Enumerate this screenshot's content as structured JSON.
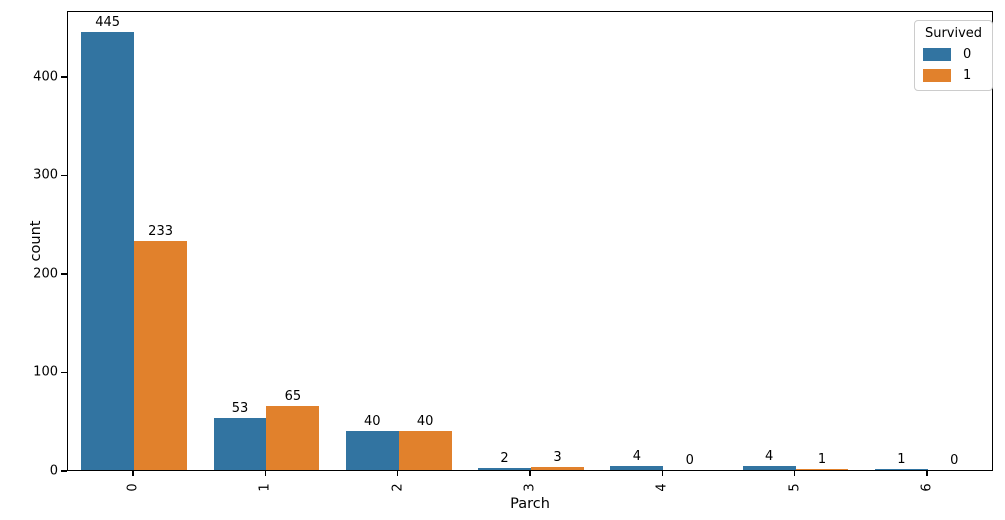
{
  "chart_data": {
    "type": "bar",
    "title": "",
    "xlabel": "Parch",
    "ylabel": "count",
    "categories": [
      "0",
      "1",
      "2",
      "3",
      "4",
      "5",
      "6"
    ],
    "series": [
      {
        "name": "0",
        "color": "#3274a1",
        "values": [
          445,
          53,
          40,
          2,
          4,
          4,
          1
        ]
      },
      {
        "name": "1",
        "color": "#e1812c",
        "values": [
          233,
          65,
          40,
          3,
          0,
          1,
          0
        ]
      }
    ],
    "bar_labels": [
      [
        "445",
        "53",
        "40",
        "2",
        "4",
        "4",
        "1"
      ],
      [
        "233",
        "65",
        "40",
        "3",
        "0",
        "1",
        "0"
      ]
    ],
    "legend": {
      "title": "Survived",
      "labels": [
        "0",
        "1"
      ],
      "position": "upper right"
    },
    "yticks": [
      0,
      100,
      200,
      300,
      400
    ],
    "ylim": [
      0,
      467
    ],
    "xtick_rotation": 90,
    "grid": "off",
    "background": "#ffffff",
    "spine_color": "#000000"
  }
}
